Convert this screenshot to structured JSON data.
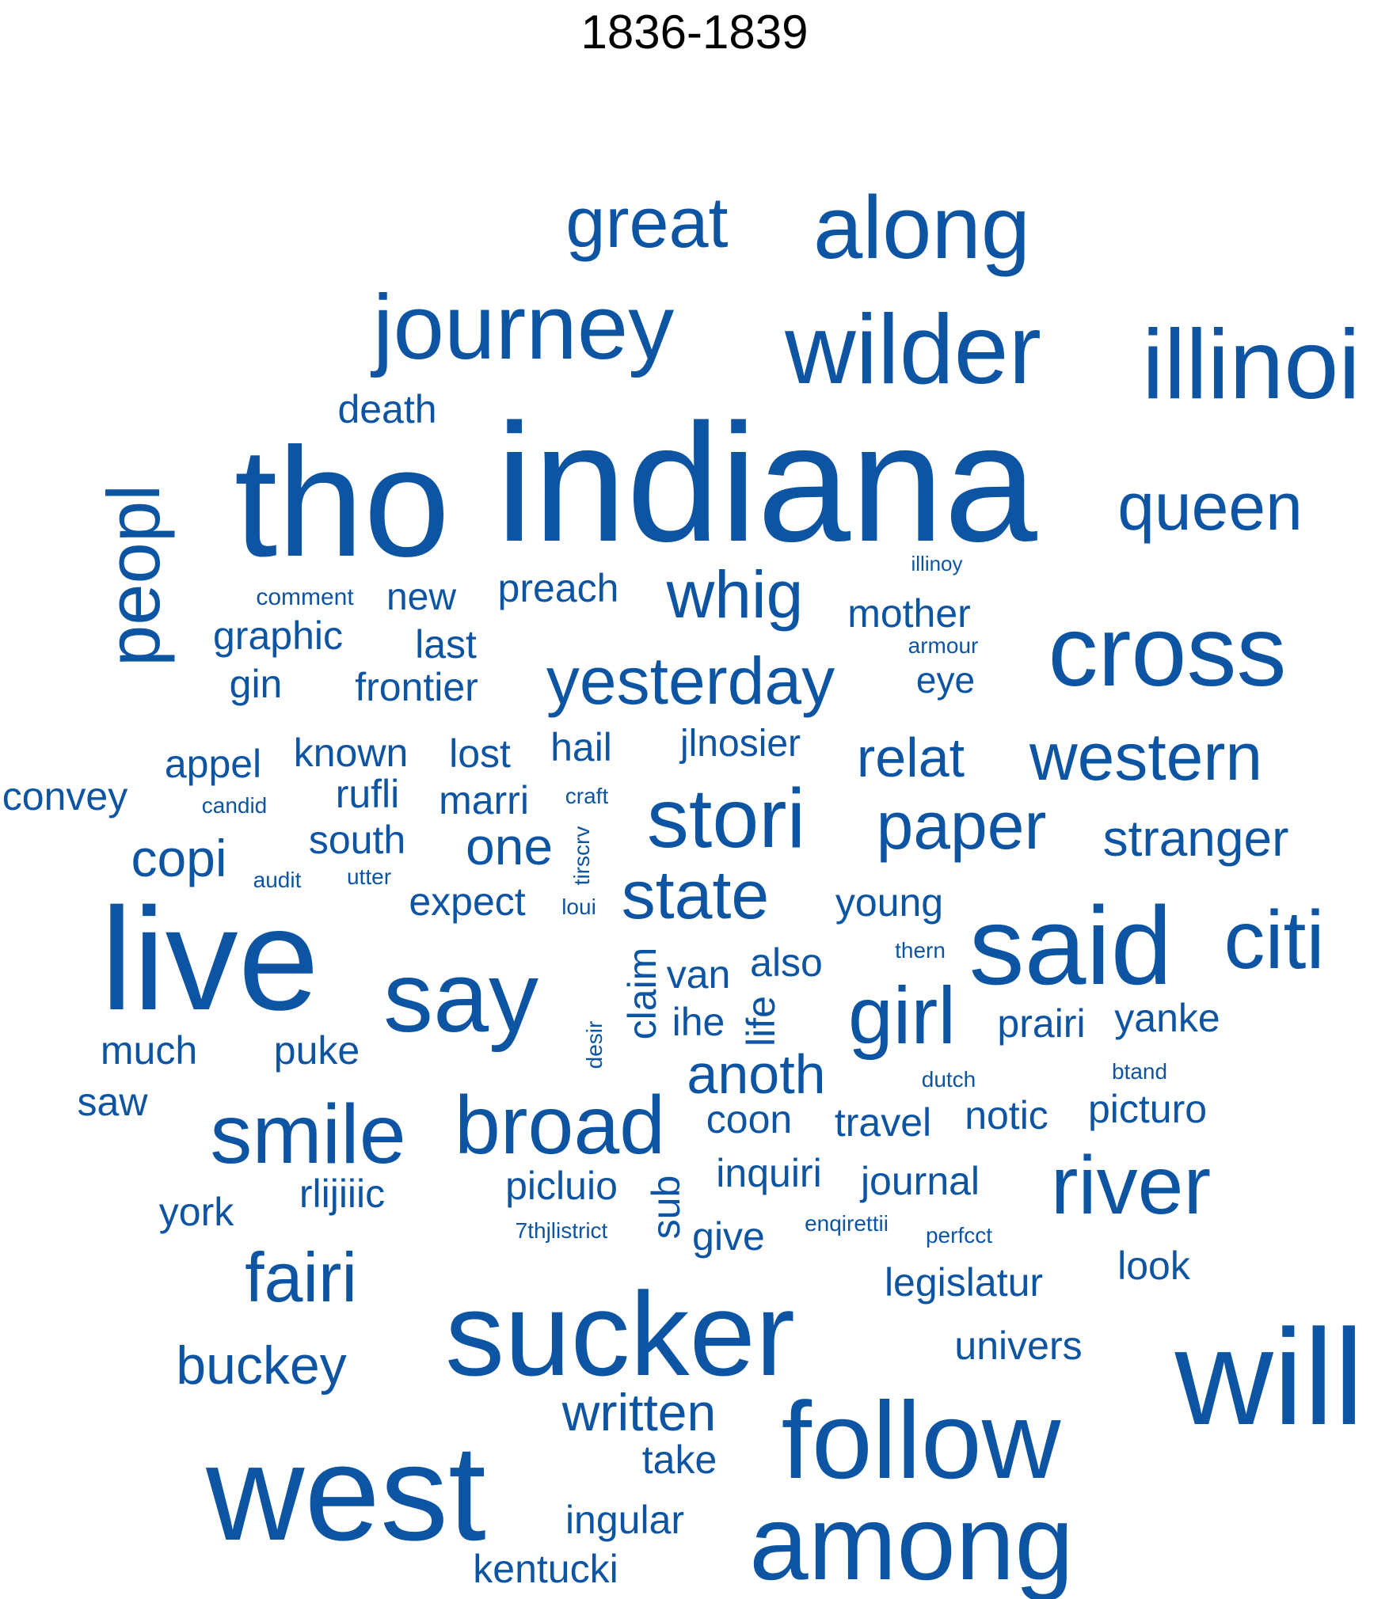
{
  "title": "1836-1839",
  "colors": {
    "word": "#0d54a3",
    "title": "#000000",
    "background": "#ffffff"
  },
  "words": [
    "great",
    "along",
    "journey",
    "wilder",
    "illinoi",
    "death",
    "tho",
    "indiana",
    "queen",
    "peopl",
    "illinoy",
    "comment",
    "new",
    "preach",
    "whig",
    "mother",
    "graphic",
    "last",
    "armour",
    "cross",
    "gin",
    "frontier",
    "yesterday",
    "eye",
    "appel",
    "known",
    "lost",
    "hail",
    "jlnosier",
    "relat",
    "western",
    "convey",
    "candid",
    "rufli",
    "marri",
    "craft",
    "stori",
    "paper",
    "copi",
    "south",
    "one",
    "tirscrv",
    "stranger",
    "audit",
    "utter",
    "expect",
    "loui",
    "state",
    "young",
    "live",
    "say",
    "claim",
    "van",
    "also",
    "thern",
    "said",
    "citi",
    "girl",
    "ihe",
    "life",
    "prairi",
    "yanke",
    "much",
    "puke",
    "desir",
    "anoth",
    "dutch",
    "btand",
    "saw",
    "smile",
    "broad",
    "coon",
    "travel",
    "notic",
    "picturo",
    "picluio",
    "inquiri",
    "journal",
    "river",
    "york",
    "rlijiiic",
    "sub",
    "7thjlistrict",
    "give",
    "enqirettii",
    "perfcct",
    "fairi",
    "legislatur",
    "look",
    "sucker",
    "buckey",
    "univers",
    "will",
    "written",
    "follow",
    "west",
    "take",
    "ingular",
    "among",
    "kentucki"
  ]
}
